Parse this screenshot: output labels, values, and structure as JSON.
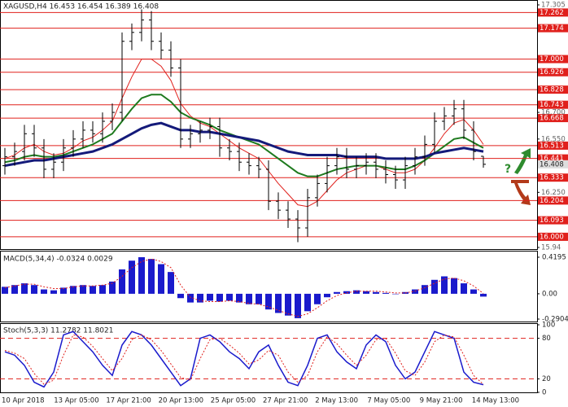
{
  "chart_data": [
    {
      "type": "ohlc",
      "title": "XAGUSD,H4 16.453 16.454 16.389 16.408",
      "open": [
        16.4,
        16.45,
        16.48,
        16.58,
        16.5,
        16.38,
        16.42,
        16.5,
        16.55,
        16.6,
        16.58,
        16.65,
        16.7,
        17.1,
        17.15,
        17.22,
        17.1,
        17.05,
        16.95,
        16.55,
        16.58,
        16.6,
        16.62,
        16.5,
        16.48,
        16.42,
        16.4,
        16.38,
        16.2,
        16.15,
        16.1,
        16.05,
        16.22,
        16.3,
        16.4,
        16.45,
        16.38,
        16.4,
        16.42,
        16.38,
        16.35,
        16.32,
        16.4,
        16.45,
        16.52,
        16.65,
        16.68,
        16.72,
        16.6,
        16.453
      ],
      "high": [
        16.5,
        16.53,
        16.63,
        16.63,
        16.55,
        16.47,
        16.55,
        16.6,
        16.65,
        16.65,
        16.7,
        16.75,
        17.15,
        17.2,
        17.28,
        17.27,
        17.15,
        17.1,
        17.0,
        16.63,
        16.65,
        16.67,
        16.67,
        16.55,
        16.53,
        16.47,
        16.45,
        16.43,
        16.25,
        16.2,
        16.15,
        16.27,
        16.35,
        16.45,
        16.5,
        16.5,
        16.45,
        16.47,
        16.47,
        16.43,
        16.4,
        16.45,
        16.5,
        16.57,
        16.7,
        16.73,
        16.77,
        16.77,
        16.65,
        16.454
      ],
      "low": [
        16.35,
        16.4,
        16.43,
        16.45,
        16.33,
        16.33,
        16.37,
        16.45,
        16.5,
        16.53,
        16.53,
        16.6,
        16.65,
        17.05,
        17.1,
        17.05,
        17.0,
        16.9,
        16.5,
        16.5,
        16.53,
        16.55,
        16.45,
        16.43,
        16.37,
        16.35,
        16.33,
        16.15,
        16.1,
        16.05,
        15.97,
        16.0,
        16.17,
        16.25,
        16.35,
        16.33,
        16.33,
        16.35,
        16.33,
        16.3,
        16.27,
        16.27,
        16.35,
        16.4,
        16.47,
        16.6,
        16.63,
        16.55,
        16.43,
        16.389
      ],
      "close": [
        16.45,
        16.48,
        16.58,
        16.5,
        16.38,
        16.42,
        16.5,
        16.55,
        16.6,
        16.58,
        16.65,
        16.7,
        17.1,
        17.15,
        17.22,
        17.1,
        17.05,
        16.95,
        16.55,
        16.58,
        16.6,
        16.62,
        16.5,
        16.48,
        16.42,
        16.4,
        16.38,
        16.2,
        16.15,
        16.1,
        16.05,
        16.22,
        16.3,
        16.4,
        16.45,
        16.38,
        16.4,
        16.42,
        16.38,
        16.35,
        16.32,
        16.4,
        16.45,
        16.52,
        16.65,
        16.68,
        16.72,
        16.6,
        16.48,
        16.408
      ],
      "series": [
        {
          "color": "#e0201c",
          "values": [
            16.44,
            16.46,
            16.5,
            16.52,
            16.48,
            16.46,
            16.47,
            16.5,
            16.54,
            16.56,
            16.6,
            16.65,
            16.78,
            16.9,
            17.0,
            17.0,
            16.96,
            16.88,
            16.75,
            16.68,
            16.64,
            16.62,
            16.58,
            16.54,
            16.5,
            16.47,
            16.44,
            16.37,
            16.3,
            16.24,
            16.18,
            16.17,
            16.2,
            16.26,
            16.32,
            16.36,
            16.38,
            16.4,
            16.4,
            16.38,
            16.36,
            16.36,
            16.38,
            16.43,
            16.5,
            16.58,
            16.64,
            16.66,
            16.6,
            16.52
          ]
        },
        {
          "color": "#1e7a1e",
          "values": [
            16.42,
            16.43,
            16.45,
            16.46,
            16.45,
            16.45,
            16.46,
            16.48,
            16.5,
            16.52,
            16.55,
            16.58,
            16.65,
            16.72,
            16.78,
            16.8,
            16.8,
            16.76,
            16.7,
            16.67,
            16.65,
            16.63,
            16.6,
            16.58,
            16.56,
            16.54,
            16.52,
            16.48,
            16.44,
            16.4,
            16.36,
            16.34,
            16.34,
            16.36,
            16.38,
            16.39,
            16.4,
            16.4,
            16.4,
            16.39,
            16.38,
            16.38,
            16.4,
            16.43,
            16.47,
            16.51,
            16.55,
            16.56,
            16.53,
            16.5
          ]
        },
        {
          "color": "#141a7a",
          "values": [
            16.4,
            16.41,
            16.42,
            16.43,
            16.43,
            16.44,
            16.45,
            16.46,
            16.47,
            16.48,
            16.5,
            16.52,
            16.55,
            16.58,
            16.61,
            16.63,
            16.64,
            16.62,
            16.6,
            16.6,
            16.59,
            16.59,
            16.58,
            16.57,
            16.56,
            16.55,
            16.54,
            16.52,
            16.5,
            16.48,
            16.47,
            16.46,
            16.46,
            16.46,
            16.46,
            16.45,
            16.45,
            16.45,
            16.45,
            16.44,
            16.44,
            16.44,
            16.44,
            16.45,
            16.47,
            16.48,
            16.49,
            16.5,
            16.49,
            16.48
          ]
        }
      ],
      "levels": [
        {
          "value": 17.262,
          "label": "17.262"
        },
        {
          "value": 17.174,
          "label": "17.174"
        },
        {
          "value": 17,
          "label": "17.000"
        },
        {
          "value": 16.926,
          "label": "16.926"
        },
        {
          "value": 16.828,
          "label": "16.828"
        },
        {
          "value": 16.743,
          "label": "16.743"
        },
        {
          "value": 16.668,
          "label": "16.668"
        },
        {
          "value": 16.513,
          "label": "16.513"
        },
        {
          "value": 16.441,
          "label": "16.441"
        },
        {
          "value": 16.333,
          "label": "16.333"
        },
        {
          "value": 16.204,
          "label": "16.204"
        },
        {
          "value": 16.093,
          "label": "16.093"
        },
        {
          "value": 16,
          "label": "16.000"
        }
      ],
      "level_color": "#e0201c",
      "current_price": 16.408,
      "ylim": [
        15.94,
        17.305
      ],
      "yticks": [
        17.305,
        {
          "value": 16.7,
          "label": "16.700"
        },
        {
          "value": 16.55,
          "label": "16.550"
        },
        {
          "value": 16.25,
          "label": "16.250"
        },
        15.94
      ],
      "x_labels": [
        "10 Apr 2018",
        "13 Apr 05:00",
        "17 Apr 21:00",
        "20 Apr 13:00",
        "25 Apr 05:00",
        "27 Apr 21:00",
        "2 May 13:00",
        "7 May 05:00",
        "9 May 21:00",
        "14 May 13:00"
      ]
    },
    {
      "type": "bar",
      "title": "MACD(5,34,4) -0.0324 0.0029",
      "color": "#1a1acc",
      "values": [
        0.08,
        0.1,
        0.12,
        0.1,
        0.05,
        0.04,
        0.07,
        0.09,
        0.1,
        0.09,
        0.1,
        0.14,
        0.28,
        0.38,
        0.42,
        0.4,
        0.34,
        0.25,
        -0.05,
        -0.1,
        -0.1,
        -0.08,
        -0.09,
        -0.08,
        -0.1,
        -0.12,
        -0.12,
        -0.18,
        -0.22,
        -0.25,
        -0.28,
        -0.2,
        -0.12,
        -0.04,
        0.02,
        0.03,
        0.04,
        0.03,
        0.02,
        0.01,
        0.0,
        0.02,
        0.05,
        0.1,
        0.16,
        0.2,
        0.18,
        0.12,
        0.05,
        -0.0324
      ],
      "signal": {
        "color": "#e0201c",
        "values": [
          0.07,
          0.09,
          0.11,
          0.11,
          0.08,
          0.06,
          0.06,
          0.08,
          0.09,
          0.09,
          0.1,
          0.12,
          0.2,
          0.3,
          0.37,
          0.4,
          0.37,
          0.3,
          0.1,
          -0.04,
          -0.08,
          -0.09,
          -0.09,
          -0.08,
          -0.09,
          -0.11,
          -0.12,
          -0.15,
          -0.19,
          -0.23,
          -0.26,
          -0.23,
          -0.16,
          -0.08,
          -0.02,
          0.01,
          0.03,
          0.03,
          0.03,
          0.02,
          0.01,
          0.01,
          0.03,
          0.07,
          0.12,
          0.17,
          0.18,
          0.15,
          0.09,
          0.0029
        ]
      },
      "ylim": [
        -0.2904,
        0.4195
      ],
      "yticks": [
        0.4195,
        {
          "value": 0,
          "label": "0.00"
        },
        -0.2904
      ]
    },
    {
      "type": "line",
      "title": "Stoch(5,3,3) 11.2782 11.8021",
      "series": [
        {
          "color": "#1a1acc",
          "values": [
            60,
            55,
            40,
            15,
            8,
            30,
            85,
            90,
            75,
            60,
            40,
            25,
            70,
            90,
            85,
            70,
            50,
            30,
            10,
            20,
            80,
            85,
            75,
            60,
            50,
            35,
            60,
            70,
            40,
            15,
            10,
            40,
            80,
            85,
            60,
            45,
            35,
            70,
            85,
            75,
            40,
            20,
            30,
            60,
            90,
            85,
            80,
            30,
            15,
            11.2782
          ]
        },
        {
          "color": "#e0201c",
          "values": [
            62,
            58,
            50,
            28,
            12,
            18,
            55,
            85,
            82,
            68,
            50,
            32,
            50,
            78,
            85,
            78,
            62,
            42,
            22,
            18,
            50,
            78,
            80,
            70,
            58,
            42,
            48,
            62,
            55,
            30,
            15,
            25,
            60,
            82,
            72,
            55,
            40,
            55,
            78,
            80,
            58,
            32,
            25,
            45,
            75,
            85,
            82,
            55,
            25,
            11.8021
          ]
        }
      ],
      "levels": [
        80,
        20
      ],
      "ylim": [
        0,
        100
      ],
      "yticks": [
        100,
        80,
        20,
        0
      ]
    }
  ]
}
